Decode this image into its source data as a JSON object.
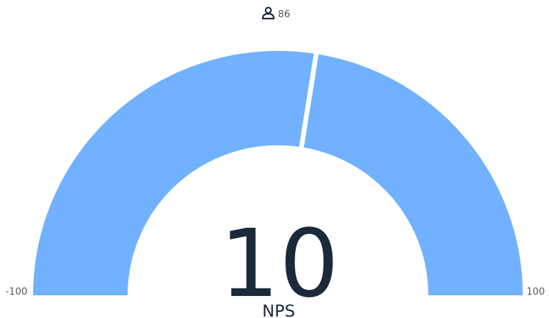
{
  "chart_data": {
    "type": "gauge",
    "value": 10,
    "min": -100,
    "max": 100,
    "label": "NPS",
    "count": 86,
    "color": "#71b1ff"
  }
}
